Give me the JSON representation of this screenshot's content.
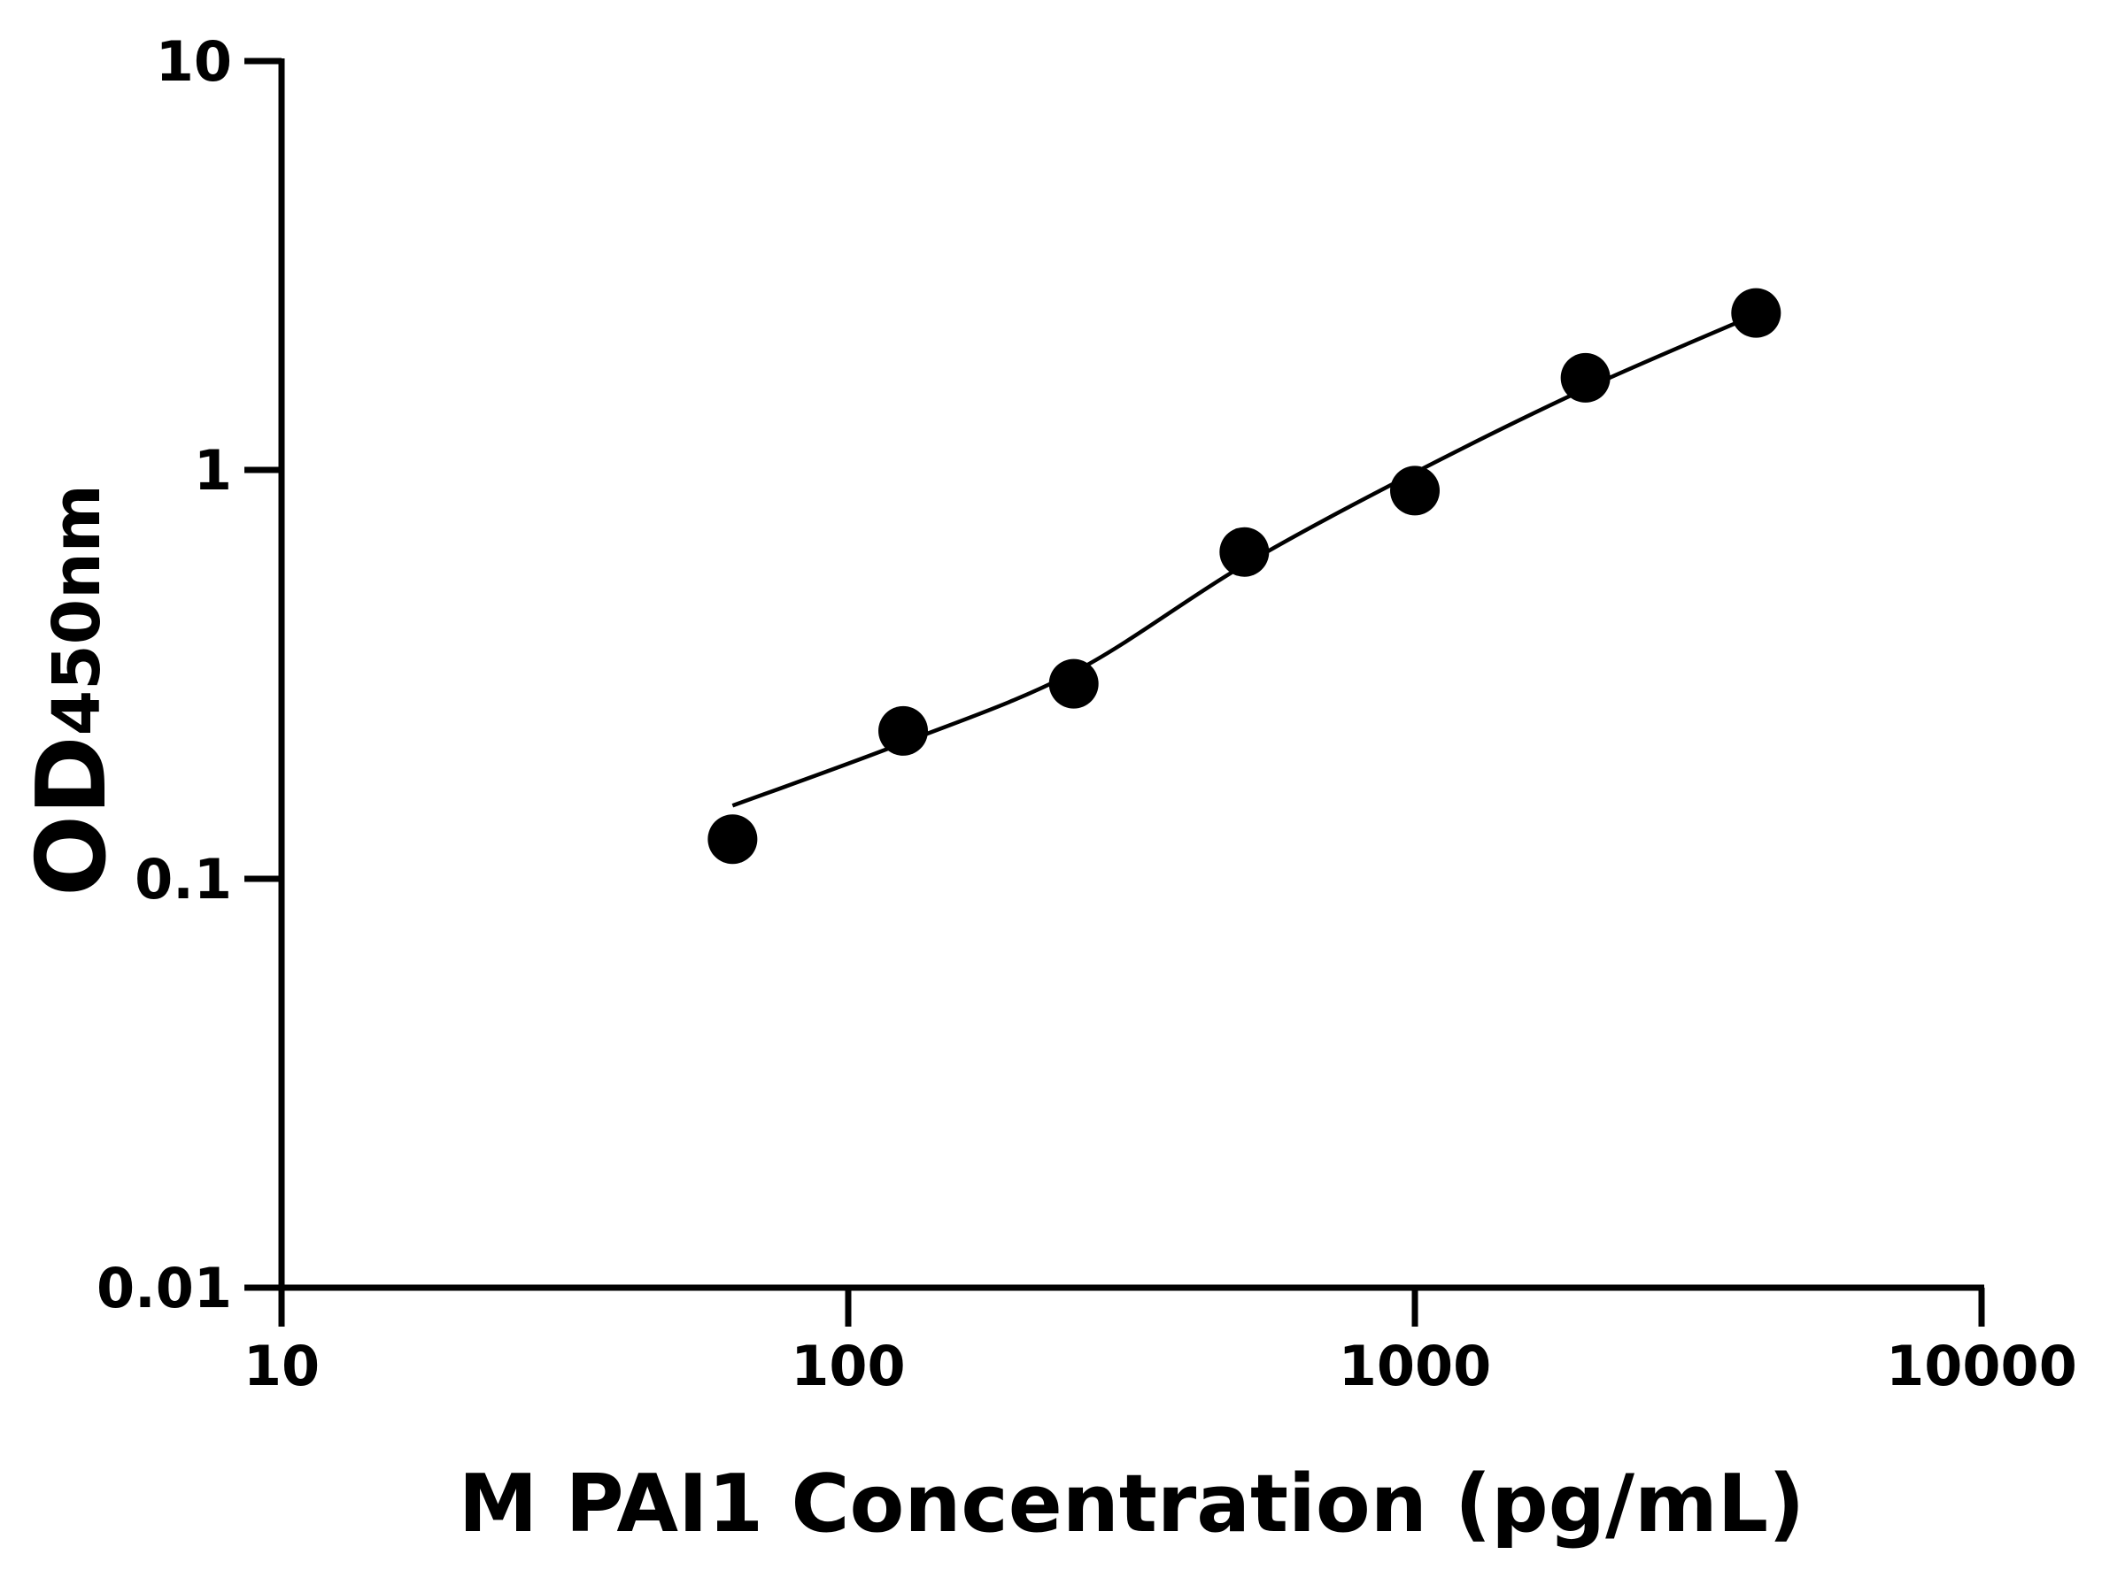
{
  "chart_data": {
    "type": "scatter",
    "x_label": "M PAI1 Concentration (pg/mL)",
    "y_label": "OD",
    "y_label_sub": "450nm",
    "x": [
      62.5,
      125,
      250,
      500,
      1000,
      2000,
      4000
    ],
    "series": [
      {
        "color": "#000000",
        "values": [
          0.125,
          0.23,
          0.3,
          0.63,
          0.89,
          1.68,
          2.42
        ]
      }
    ],
    "fit": {
      "color": "#000000",
      "x": [
        62.5,
        125,
        250,
        500,
        1000,
        2000,
        4000
      ],
      "values": [
        0.151,
        0.215,
        0.32,
        0.586,
        0.985,
        1.58,
        2.4
      ]
    },
    "xlim": [
      10,
      10000
    ],
    "ylim": [
      0.01,
      10
    ],
    "xticks": [
      10,
      100,
      1000,
      10000
    ],
    "yticks": [
      0.01,
      0.1,
      1,
      10
    ],
    "xscale": "log",
    "yscale": "log"
  }
}
